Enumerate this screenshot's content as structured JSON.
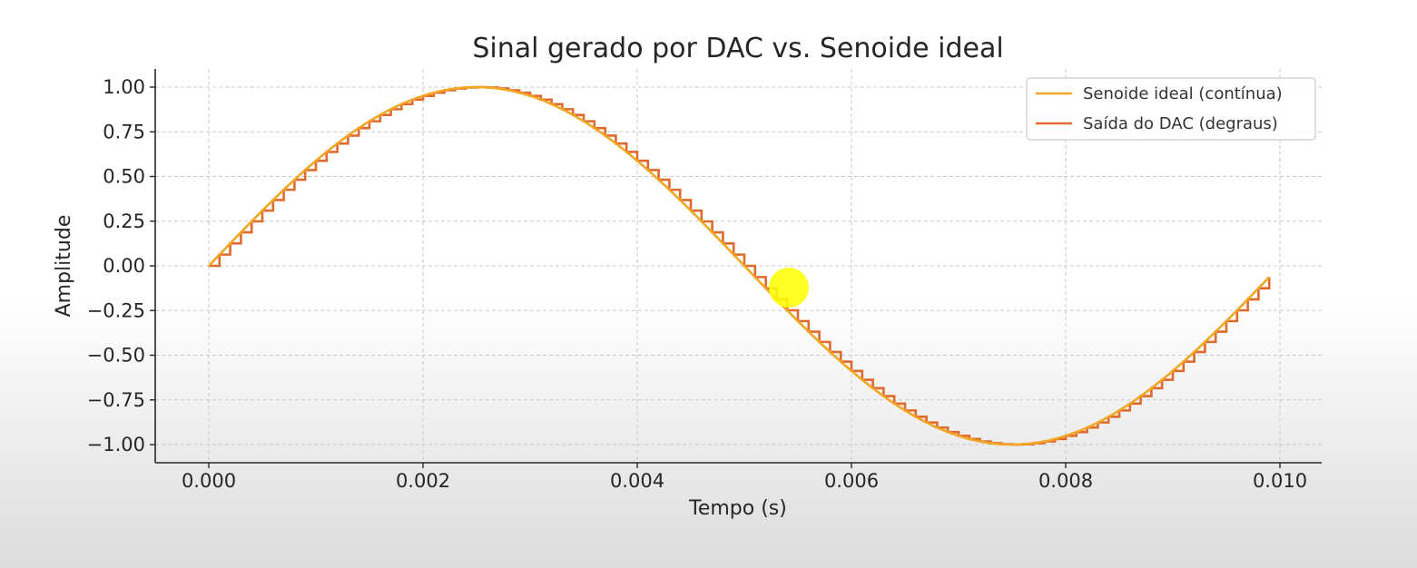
{
  "chart_data": {
    "type": "line",
    "title": "Sinal gerado por DAC vs. Senoide ideal",
    "xlabel": "Tempo (s)",
    "ylabel": "Amplitude",
    "xlim": [
      -0.00025,
      0.0104
    ],
    "ylim": [
      -1.1,
      1.1
    ],
    "x_ticks": [
      0.0,
      0.002,
      0.004,
      0.006,
      0.008,
      0.01
    ],
    "x_tick_labels": [
      "0.000",
      "0.002",
      "0.004",
      "0.006",
      "0.008",
      "0.010"
    ],
    "y_ticks": [
      1.0,
      0.75,
      0.5,
      0.25,
      0.0,
      -0.25,
      -0.5,
      -0.75,
      -1.0
    ],
    "y_tick_labels": [
      "1.00",
      "0.75",
      "0.50",
      "0.25",
      "0.00",
      "−0.25",
      "−0.50",
      "−0.75",
      "−1.00"
    ],
    "grid": true,
    "legend_position": "top-right",
    "series": [
      {
        "name": "Senoide ideal (contínua)",
        "kind": "continuous",
        "color": "#f2a623",
        "function": "sin(2*pi*100*t)",
        "x_range": [
          0.0,
          0.0099
        ]
      },
      {
        "name": "Saída do DAC (degraus)",
        "kind": "step",
        "color": "#e06a2c",
        "function": "sin(2*pi*100*t)",
        "sample_interval": 0.0001,
        "x_range": [
          0.0,
          0.0099
        ]
      }
    ]
  },
  "highlight": {
    "color": "#ffff00"
  }
}
